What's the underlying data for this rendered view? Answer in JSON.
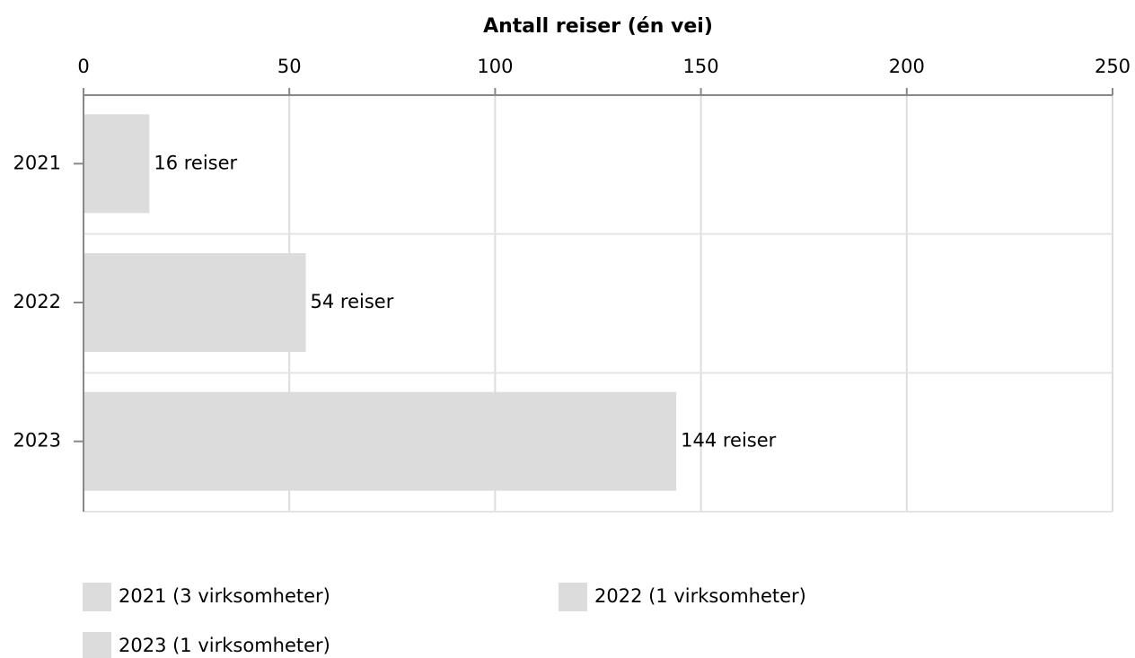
{
  "chart_data": {
    "type": "hbar",
    "xlabel": "Antall reiser (én vei)",
    "categories": [
      "2021",
      "2022",
      "2023"
    ],
    "values": [
      16,
      54,
      144
    ],
    "value_labels": [
      "16 reiser",
      "54 reiser",
      "144 reiser"
    ],
    "color": "#dcdcdc",
    "legend": [
      "2021 (3 virksomheter)",
      "2022 (1 virksomheter)",
      "2023 (1 virksomheter)"
    ],
    "xlim": [
      0,
      250
    ],
    "xticks": [
      0,
      50,
      100,
      150,
      200,
      250
    ],
    "grid": true
  }
}
